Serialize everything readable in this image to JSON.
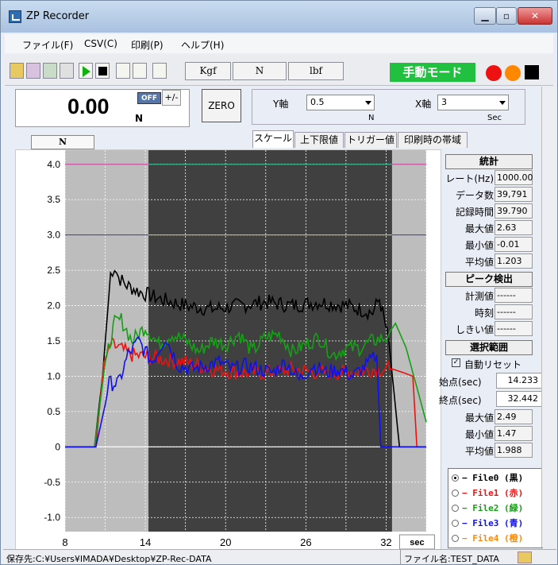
{
  "window": {
    "title": "ZP Recorder"
  },
  "menu": [
    "ファイル(F)",
    "CSV(C)",
    "印刷(P)",
    "ヘルプ(H)"
  ],
  "toolbar": {
    "units": [
      "Kgf",
      "N",
      "lbf"
    ],
    "mode": "手動モード",
    "colors": {
      "manual_bg": "#22c040",
      "red": "#ee1111",
      "orange": "#ff8800"
    }
  },
  "readout": {
    "value": "0.00",
    "unit": "N",
    "off": "OFF",
    "plusminus": "+/-",
    "zero": "ZERO"
  },
  "yaxis": {
    "label": "Y軸",
    "value": "0.5",
    "unit": "N"
  },
  "xaxis": {
    "label": "X軸",
    "value": "3",
    "unit": "Sec"
  },
  "tabs": [
    "スケール",
    "上下限値",
    "トリガー値",
    "印刷時の帯域"
  ],
  "n_label": "N",
  "stats": {
    "title": "統計",
    "rows": [
      {
        "k": "レート(Hz)",
        "v": "1000.00"
      },
      {
        "k": "データ数",
        "v": "39,791"
      },
      {
        "k": "記録時間",
        "v": "39.790"
      },
      {
        "k": "最大値",
        "v": "2.63"
      },
      {
        "k": "最小値",
        "v": "-0.01"
      },
      {
        "k": "平均値",
        "v": "1.203"
      }
    ]
  },
  "peak": {
    "title": "ピーク検出",
    "rows": [
      {
        "k": "計測値",
        "v": "------"
      },
      {
        "k": "時刻",
        "v": "------"
      },
      {
        "k": "しきい値",
        "v": "------"
      }
    ]
  },
  "range": {
    "title": "選択範囲",
    "auto_reset": "自動リセット",
    "start_label": "始点(sec)",
    "start": "14.233",
    "end_label": "終点(sec)",
    "end": "32.442",
    "rows": [
      {
        "k": "最大値",
        "v": "2.49"
      },
      {
        "k": "最小値",
        "v": "1.47"
      },
      {
        "k": "平均値",
        "v": "1.988"
      }
    ]
  },
  "files": [
    {
      "label": "− File0 (黒)",
      "color": "#000000",
      "on": true
    },
    {
      "label": "− File1 (赤)",
      "color": "#ee1111",
      "on": false
    },
    {
      "label": "− File2 (緑)",
      "color": "#14a014",
      "on": false
    },
    {
      "label": "− File3 (青)",
      "color": "#1010ee",
      "on": false
    },
    {
      "label": "− File4 (橙)",
      "color": "#ff8800",
      "on": false
    }
  ],
  "status": {
    "path": "保存先:C:¥Users¥IMADA¥Desktop¥ZP-Rec-DATA",
    "file": "ファイル名:TEST_DATA"
  },
  "chart_data": {
    "type": "line",
    "xlim": [
      8,
      35
    ],
    "ylim": [
      -1.2,
      4.2
    ],
    "xticks": [
      "8",
      "14",
      "20",
      "26",
      "32"
    ],
    "yticks": [
      "4.0",
      "3.5",
      "3.0",
      "2.5",
      "2.0",
      "1.5",
      "1.0",
      "0.5",
      "0",
      "-0.5",
      "-1.0"
    ],
    "x_unit": "sec",
    "selection": [
      14.233,
      32.442
    ],
    "upper_limit": 4.0,
    "lower_limit": 3.0,
    "series": [
      {
        "color": "#000000",
        "x": [
          8,
          10.2,
          10.8,
          11.4,
          11.7,
          12.0,
          12.5,
          13.5,
          15,
          17,
          19,
          21,
          23,
          25,
          27,
          29,
          31,
          31.5,
          32.2,
          33.0,
          33.4,
          35
        ],
        "y": [
          0,
          0,
          1.0,
          2.45,
          2.55,
          2.4,
          2.3,
          2.2,
          2.1,
          2.0,
          1.95,
          2.0,
          2.05,
          2.0,
          2.05,
          2.0,
          1.9,
          2.1,
          1.5,
          0,
          0,
          0
        ]
      },
      {
        "color": "#ee1111",
        "x": [
          8,
          10.3,
          10.9,
          11.4,
          12.0,
          13,
          15,
          17,
          19,
          21,
          23,
          25,
          27,
          29,
          31,
          32.5,
          33.3,
          34.0,
          34.3,
          35
        ],
        "y": [
          0,
          0,
          1.2,
          1.45,
          1.4,
          1.3,
          1.25,
          1.2,
          1.1,
          1.05,
          1.05,
          1.1,
          1.05,
          1.05,
          1.1,
          1.1,
          1.05,
          1.0,
          0,
          0
        ]
      },
      {
        "color": "#14a014",
        "x": [
          8,
          10.2,
          11.0,
          11.7,
          12.2,
          13,
          14,
          15,
          16,
          17,
          18,
          19,
          20,
          21,
          22,
          23,
          24,
          25,
          26,
          27,
          28,
          29,
          30,
          31,
          32,
          32.7,
          33.5,
          34.5,
          35
        ],
        "y": [
          0,
          0,
          1.2,
          1.75,
          1.8,
          1.5,
          1.7,
          1.45,
          1.6,
          1.5,
          1.35,
          1.5,
          1.45,
          1.6,
          1.35,
          1.55,
          1.6,
          1.35,
          1.45,
          1.55,
          1.3,
          1.4,
          1.4,
          1.5,
          1.55,
          1.75,
          1.4,
          0.7,
          0.35
        ]
      },
      {
        "color": "#1010ee",
        "x": [
          8,
          10.3,
          11.0,
          11.3,
          12.0,
          12.7,
          13.5,
          14.5,
          15.5,
          16.5,
          17.5,
          18.5,
          19.5,
          20.5,
          21.5,
          22.5,
          23.5,
          24.5,
          25.5,
          26.5,
          27.5,
          28.5,
          29.5,
          30.5,
          31.3,
          31.6,
          32.0,
          35
        ],
        "y": [
          0,
          0,
          0.6,
          0.9,
          0.9,
          1.3,
          1.5,
          1.2,
          1.55,
          1.15,
          1.1,
          1.15,
          1.2,
          1.1,
          1.15,
          1.1,
          1.05,
          1.2,
          0.95,
          1.15,
          1.05,
          1.1,
          1.0,
          1.15,
          1.3,
          0,
          0,
          0
        ]
      }
    ]
  }
}
